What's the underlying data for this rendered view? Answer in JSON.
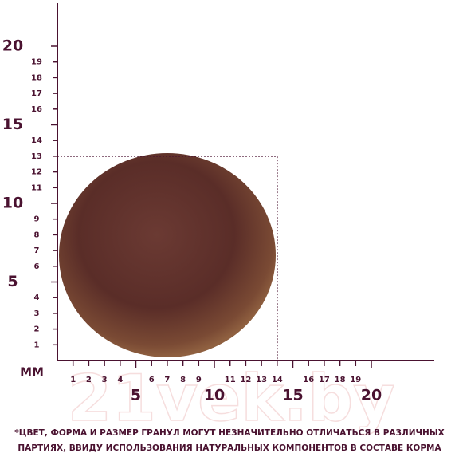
{
  "ruler": {
    "unit": "ММ",
    "vertical": [
      1,
      2,
      3,
      4,
      5,
      6,
      7,
      8,
      9,
      10,
      11,
      12,
      13,
      14,
      15,
      16,
      17,
      18,
      19,
      20
    ],
    "horizontal": [
      1,
      2,
      3,
      4,
      5,
      6,
      7,
      8,
      9,
      10,
      11,
      12,
      13,
      14,
      15,
      16,
      17,
      18,
      19,
      20
    ],
    "frame": 13
  },
  "watermark": "21vek.by",
  "footnote": [
    "*ЦВЕТ, ФОРМА И РАЗМЕР ГРАНУЛ МОГУТ НЕЗНАЧИТЕЛЬНО ОТЛИЧАТЬСЯ В РАЗЛИЧНЫХ",
    "ПАРТИЯХ, ВВИДУ ИСПОЛЬЗОВАНИЯ НАТУРАЛЬНЫХ КОМПОНЕНТОВ В СОСТАВЕ КОРМА"
  ]
}
